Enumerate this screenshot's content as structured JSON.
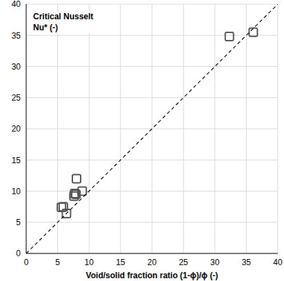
{
  "chart_data": {
    "type": "scatter",
    "title": "Critical Nusselt",
    "ylabel": "Nu* (-)",
    "xlabel": "Void/solid fraction ratio (1-ϕ)/ϕ (-)",
    "xlim": [
      0,
      40
    ],
    "ylim": [
      0,
      40
    ],
    "xticks": [
      0,
      5,
      10,
      15,
      20,
      25,
      30,
      35,
      40
    ],
    "yticks": [
      0,
      5,
      10,
      15,
      20,
      25,
      30,
      35,
      40
    ],
    "grid": true,
    "series": [
      {
        "type": "scatter",
        "marker": "square",
        "color": "#555555",
        "x": [
          32.3,
          36.1,
          5.6,
          5.9,
          6.4,
          7.6,
          7.7,
          7.9,
          8.0,
          8.9
        ],
        "values": [
          34.8,
          35.5,
          7.4,
          7.5,
          6.4,
          9.2,
          9.6,
          9.5,
          12.0,
          10.0
        ]
      },
      {
        "type": "line",
        "line_style": "dashed",
        "color": "#000000",
        "x": [
          0,
          40
        ],
        "values": [
          0,
          40
        ]
      }
    ]
  }
}
